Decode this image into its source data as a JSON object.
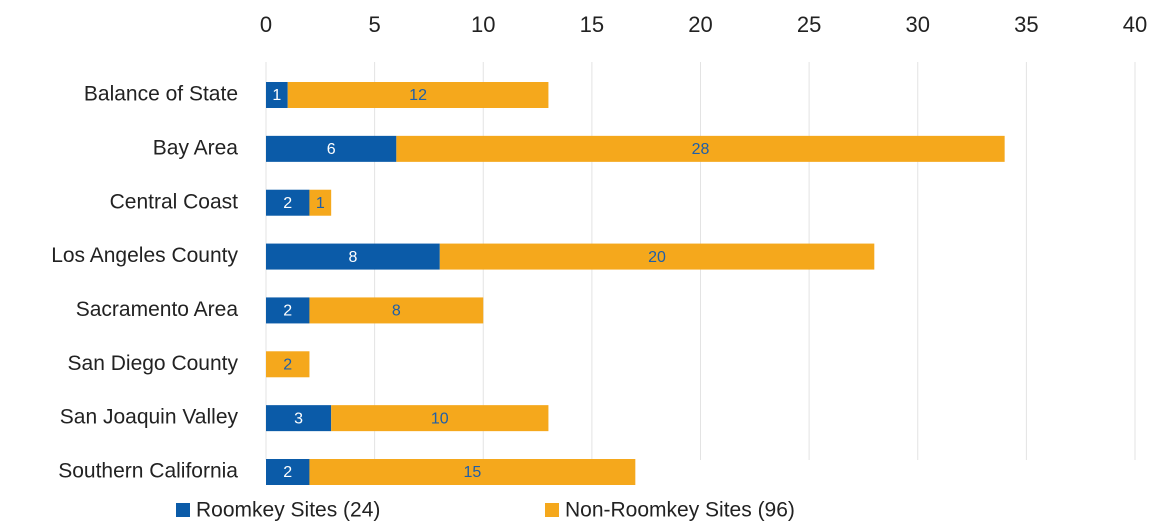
{
  "chart_data": {
    "type": "bar",
    "orientation": "horizontal",
    "stacked": true,
    "categories": [
      "Balance of State",
      "Bay Area",
      "Central Coast",
      "Los Angeles County",
      "Sacramento Area",
      "San Diego County",
      "San Joaquin Valley",
      "Southern California"
    ],
    "series": [
      {
        "name": "Roomkey Sites (24)",
        "color": "#0b5ba8",
        "label_color": "#ffffff",
        "values": [
          1,
          6,
          2,
          8,
          2,
          0,
          3,
          2
        ]
      },
      {
        "name": "Non-Roomkey Sites (96)",
        "color": "#f5a81c",
        "label_color": "#1f5fa8",
        "values": [
          12,
          28,
          1,
          20,
          8,
          2,
          10,
          15
        ]
      }
    ],
    "xlim": [
      0,
      40
    ],
    "xticks": [
      0,
      5,
      10,
      15,
      20,
      25,
      30,
      35,
      40
    ],
    "grid": true,
    "legend": "bottom"
  }
}
